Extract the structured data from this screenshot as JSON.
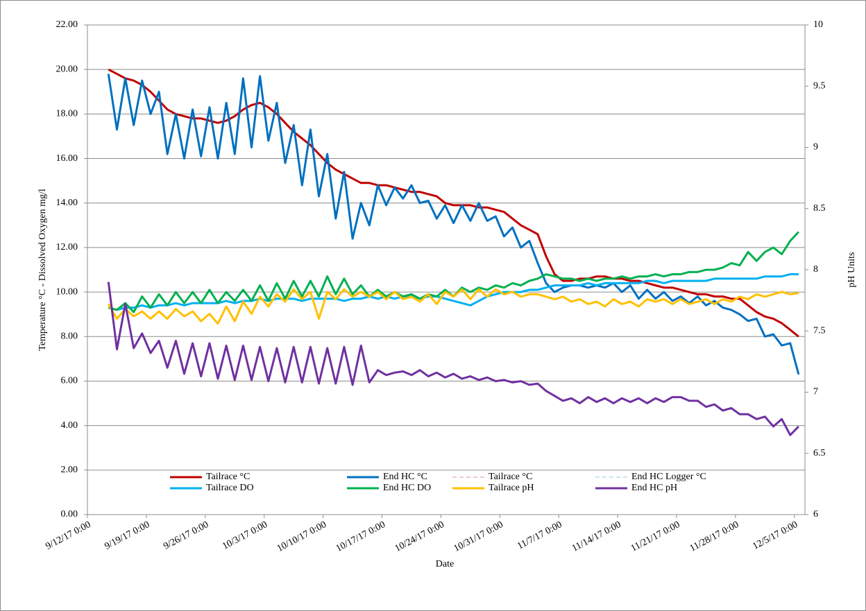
{
  "chart_data": {
    "type": "line",
    "x_label": "Date",
    "y_label": "Temperature °C - Dissolved Oxygen mg/l",
    "y2_label": "pH Units",
    "xlim": [
      "9/12/17 0:00",
      "12/6/17 6:00"
    ],
    "xticks": [
      "9/12/17 0:00",
      "9/19/17 0:00",
      "9/26/17 0:00",
      "10/3/17 0:00",
      "10/10/17 0:00",
      "10/17/17 0:00",
      "10/24/17 0:00",
      "10/31/17 0:00",
      "11/7/17 0:00",
      "11/14/17 0:00",
      "11/21/17 0:00",
      "11/28/17 0:00",
      "12/5/17 0:00"
    ],
    "ylim": [
      0,
      22
    ],
    "yticks": [
      {
        "value": 0,
        "label": "0.00"
      },
      {
        "value": 2,
        "label": "2.00"
      },
      {
        "value": 4,
        "label": "4.00"
      },
      {
        "value": 6,
        "label": "6.00"
      },
      {
        "value": 8,
        "label": "8.00"
      },
      {
        "value": 10,
        "label": "10.00"
      },
      {
        "value": 12,
        "label": "12.00"
      },
      {
        "value": 14,
        "label": "14.00"
      },
      {
        "value": 16,
        "label": "16.00"
      },
      {
        "value": 18,
        "label": "18.00"
      },
      {
        "value": 20,
        "label": "20.00"
      },
      {
        "value": 22,
        "label": "22.00"
      }
    ],
    "y2lim": [
      6,
      10
    ],
    "y2ticks": [
      6,
      6.5,
      7,
      7.5,
      8,
      8.5,
      9,
      9.5,
      10
    ],
    "grid": true,
    "legend": "lower center",
    "x": [
      "9/14/17 12:00",
      "9/15/17 12:00",
      "9/16/17 12:00",
      "9/17/17 12:00",
      "9/18/17 12:00",
      "9/19/17 12:00",
      "9/20/17 12:00",
      "9/21/17 12:00",
      "9/22/17 12:00",
      "9/23/17 12:00",
      "9/24/17 12:00",
      "9/25/17 12:00",
      "9/26/17 12:00",
      "9/27/17 12:00",
      "9/28/17 12:00",
      "9/29/17 12:00",
      "9/30/17 12:00",
      "10/1/17 12:00",
      "10/2/17 12:00",
      "10/3/17 12:00",
      "10/4/17 12:00",
      "10/5/17 12:00",
      "10/6/17 12:00",
      "10/7/17 12:00",
      "10/8/17 12:00",
      "10/9/17 12:00",
      "10/10/17 12:00",
      "10/11/17 12:00",
      "10/12/17 12:00",
      "10/13/17 12:00",
      "10/14/17 12:00",
      "10/15/17 12:00",
      "10/16/17 12:00",
      "10/17/17 12:00",
      "10/18/17 12:00",
      "10/19/17 12:00",
      "10/20/17 12:00",
      "10/21/17 12:00",
      "10/22/17 12:00",
      "10/23/17 12:00",
      "10/24/17 12:00",
      "10/25/17 12:00",
      "10/26/17 12:00",
      "10/27/17 12:00",
      "10/28/17 12:00",
      "10/29/17 12:00",
      "10/30/17 12:00",
      "10/31/17 12:00",
      "11/1/17 12:00",
      "11/2/17 12:00",
      "11/3/17 12:00",
      "11/4/17 12:00",
      "11/5/17 12:00",
      "11/6/17 12:00",
      "11/7/17 12:00",
      "11/8/17 12:00",
      "11/9/17 12:00",
      "11/10/17 12:00",
      "11/11/17 12:00",
      "11/12/17 12:00",
      "11/13/17 12:00",
      "11/14/17 12:00",
      "11/15/17 12:00",
      "11/16/17 12:00",
      "11/17/17 12:00",
      "11/18/17 12:00",
      "11/19/17 12:00",
      "11/20/17 12:00",
      "11/21/17 12:00",
      "11/22/17 12:00",
      "11/23/17 12:00",
      "11/24/17 12:00",
      "11/25/17 12:00",
      "11/26/17 12:00",
      "11/27/17 12:00",
      "11/28/17 12:00",
      "11/29/17 12:00",
      "11/30/17 12:00",
      "12/1/17 12:00",
      "12/2/17 12:00",
      "12/3/17 12:00",
      "12/4/17 12:00",
      "12/5/17 12:00"
    ],
    "series": [
      {
        "name": "Tailrace °C",
        "color": "#C00000",
        "values": [
          20.0,
          19.8,
          19.6,
          19.5,
          19.3,
          19.0,
          18.6,
          18.2,
          18.0,
          17.9,
          17.8,
          17.8,
          17.7,
          17.6,
          17.7,
          17.9,
          18.2,
          18.4,
          18.5,
          18.3,
          18.0,
          17.6,
          17.2,
          16.9,
          16.6,
          16.2,
          15.8,
          15.5,
          15.3,
          15.1,
          14.9,
          14.9,
          14.8,
          14.8,
          14.7,
          14.6,
          14.5,
          14.5,
          14.4,
          14.3,
          14.0,
          13.9,
          13.9,
          13.9,
          13.8,
          13.8,
          13.7,
          13.6,
          13.3,
          13.0,
          12.8,
          12.6,
          11.6,
          10.8,
          10.5,
          10.5,
          10.6,
          10.6,
          10.7,
          10.7,
          10.6,
          10.6,
          10.5,
          10.5,
          10.4,
          10.3,
          10.2,
          10.2,
          10.1,
          10.0,
          9.9,
          9.9,
          9.8,
          9.8,
          9.7,
          9.7,
          9.4,
          9.1,
          8.9,
          8.8,
          8.6,
          8.3,
          8.0
        ]
      },
      {
        "name": "End HC °C",
        "color": "#0070C0",
        "values": [
          19.8,
          17.3,
          19.6,
          17.5,
          19.5,
          18.0,
          19.0,
          16.2,
          18.0,
          16.0,
          18.2,
          16.1,
          18.3,
          16.0,
          18.5,
          16.2,
          19.6,
          16.5,
          19.7,
          16.8,
          18.5,
          15.8,
          17.5,
          14.8,
          17.3,
          14.3,
          16.2,
          13.3,
          15.4,
          12.4,
          14.0,
          13.0,
          14.8,
          13.9,
          14.7,
          14.2,
          14.8,
          14.0,
          14.1,
          13.3,
          13.9,
          13.1,
          13.9,
          13.2,
          14.0,
          13.2,
          13.4,
          12.5,
          12.9,
          12.0,
          12.3,
          11.3,
          10.4,
          10.0,
          10.2,
          10.3,
          10.3,
          10.2,
          10.3,
          10.2,
          10.4,
          10.0,
          10.3,
          9.7,
          10.1,
          9.7,
          10.0,
          9.6,
          9.8,
          9.5,
          9.8,
          9.4,
          9.6,
          9.3,
          9.2,
          9.0,
          8.7,
          8.8,
          8.0,
          8.1,
          7.6,
          7.7,
          6.3
        ]
      },
      {
        "name": "Tailrace °C",
        "color": "#E6B9B8",
        "dash": true,
        "values": [
          null,
          null,
          null,
          null,
          null,
          null,
          null,
          null,
          null,
          null,
          null,
          null,
          null,
          null,
          null,
          null,
          null,
          null,
          null,
          null,
          null,
          null,
          null,
          null,
          null,
          null,
          null,
          null,
          null,
          null,
          null,
          null,
          null,
          null,
          null,
          null,
          null,
          null,
          null,
          null,
          null,
          null,
          null,
          null,
          null,
          null,
          null,
          null,
          null,
          null,
          null,
          null,
          null,
          null,
          null,
          null,
          null,
          null,
          null,
          null,
          null,
          null,
          null,
          null,
          null,
          null,
          null,
          null,
          null,
          null,
          null,
          null,
          null,
          null,
          null,
          null,
          null,
          null,
          null,
          null,
          null,
          null,
          null
        ]
      },
      {
        "name": "End HC Logger °C",
        "color": "#B7DEE8",
        "dash": true,
        "values": [
          null,
          null,
          null,
          null,
          null,
          null,
          null,
          null,
          null,
          null,
          null,
          null,
          null,
          null,
          null,
          null,
          null,
          null,
          null,
          null,
          null,
          null,
          null,
          null,
          null,
          null,
          null,
          null,
          null,
          null,
          null,
          null,
          null,
          null,
          null,
          null,
          null,
          null,
          null,
          null,
          null,
          null,
          null,
          null,
          null,
          null,
          null,
          null,
          null,
          null,
          null,
          null,
          null,
          null,
          null,
          null,
          null,
          null,
          null,
          null,
          null,
          null,
          null,
          null,
          null,
          null,
          null,
          null,
          null,
          null,
          null,
          null,
          null,
          null,
          null,
          null,
          null,
          null,
          null,
          null,
          null,
          null,
          null
        ]
      },
      {
        "name": "Tailrace DO",
        "color": "#00B0F0",
        "values": [
          9.3,
          9.2,
          9.3,
          9.3,
          9.4,
          9.3,
          9.4,
          9.4,
          9.5,
          9.4,
          9.5,
          9.5,
          9.5,
          9.5,
          9.6,
          9.5,
          9.6,
          9.6,
          9.7,
          9.6,
          9.7,
          9.7,
          9.7,
          9.6,
          9.7,
          9.7,
          9.7,
          9.7,
          9.6,
          9.7,
          9.7,
          9.8,
          9.7,
          9.8,
          9.7,
          9.8,
          9.8,
          9.7,
          9.8,
          9.8,
          9.7,
          9.6,
          9.5,
          9.4,
          9.6,
          9.8,
          9.9,
          10.0,
          10.0,
          10.0,
          10.1,
          10.1,
          10.2,
          10.3,
          10.3,
          10.3,
          10.3,
          10.4,
          10.3,
          10.4,
          10.4,
          10.4,
          10.4,
          10.4,
          10.5,
          10.5,
          10.4,
          10.5,
          10.5,
          10.5,
          10.5,
          10.5,
          10.6,
          10.6,
          10.6,
          10.6,
          10.6,
          10.6,
          10.7,
          10.7,
          10.7,
          10.8,
          10.8
        ]
      },
      {
        "name": "End HC DO",
        "color": "#00B050",
        "values": [
          9.3,
          9.2,
          9.5,
          9.1,
          9.8,
          9.3,
          9.9,
          9.4,
          10.0,
          9.5,
          10.0,
          9.5,
          10.1,
          9.5,
          10.0,
          9.6,
          10.1,
          9.6,
          10.3,
          9.6,
          10.4,
          9.7,
          10.5,
          9.8,
          10.5,
          9.8,
          10.7,
          9.9,
          10.6,
          9.9,
          10.3,
          9.8,
          10.1,
          9.8,
          10.0,
          9.8,
          9.9,
          9.7,
          9.9,
          9.8,
          10.1,
          9.8,
          10.2,
          10.0,
          10.2,
          10.1,
          10.3,
          10.2,
          10.4,
          10.3,
          10.5,
          10.6,
          10.8,
          10.7,
          10.6,
          10.6,
          10.5,
          10.6,
          10.5,
          10.6,
          10.6,
          10.7,
          10.6,
          10.7,
          10.7,
          10.8,
          10.7,
          10.8,
          10.8,
          10.9,
          10.9,
          11.0,
          11.0,
          11.1,
          11.3,
          11.2,
          11.8,
          11.4,
          11.8,
          12.0,
          11.7,
          12.3,
          12.7
        ]
      },
      {
        "name": "Tailrace pH",
        "color": "#FFC000",
        "axis": "y2",
        "values": [
          7.72,
          7.6,
          7.68,
          7.62,
          7.66,
          7.6,
          7.66,
          7.6,
          7.68,
          7.62,
          7.66,
          7.58,
          7.64,
          7.56,
          7.7,
          7.58,
          7.74,
          7.64,
          7.78,
          7.7,
          7.8,
          7.74,
          7.84,
          7.76,
          7.82,
          7.6,
          7.82,
          7.76,
          7.84,
          7.78,
          7.82,
          7.78,
          7.82,
          7.76,
          7.82,
          7.76,
          7.78,
          7.74,
          7.8,
          7.72,
          7.82,
          7.78,
          7.84,
          7.76,
          7.84,
          7.78,
          7.84,
          7.8,
          7.82,
          7.78,
          7.8,
          7.8,
          7.78,
          7.76,
          7.78,
          7.74,
          7.76,
          7.72,
          7.74,
          7.7,
          7.76,
          7.72,
          7.74,
          7.7,
          7.76,
          7.74,
          7.76,
          7.72,
          7.76,
          7.72,
          7.74,
          7.76,
          7.72,
          7.76,
          7.74,
          7.78,
          7.76,
          7.8,
          7.78,
          7.8,
          7.82,
          7.8,
          7.81
        ]
      },
      {
        "name": "End HC pH",
        "color": "#7030A0",
        "axis": "y2",
        "values": [
          7.9,
          7.35,
          7.72,
          7.36,
          7.48,
          7.32,
          7.42,
          7.2,
          7.42,
          7.15,
          7.4,
          7.13,
          7.4,
          7.11,
          7.38,
          7.1,
          7.38,
          7.1,
          7.37,
          7.09,
          7.36,
          7.08,
          7.37,
          7.08,
          7.37,
          7.07,
          7.36,
          7.07,
          7.37,
          7.06,
          7.38,
          7.08,
          7.18,
          7.14,
          7.16,
          7.17,
          7.14,
          7.18,
          7.13,
          7.16,
          7.12,
          7.15,
          7.11,
          7.13,
          7.1,
          7.12,
          7.09,
          7.1,
          7.08,
          7.09,
          7.06,
          7.07,
          7.01,
          6.97,
          6.93,
          6.95,
          6.91,
          6.96,
          6.92,
          6.95,
          6.91,
          6.95,
          6.92,
          6.95,
          6.91,
          6.95,
          6.92,
          6.96,
          6.96,
          6.93,
          6.93,
          6.88,
          6.9,
          6.85,
          6.87,
          6.82,
          6.82,
          6.78,
          6.8,
          6.72,
          6.78,
          6.65,
          6.72
        ]
      }
    ]
  }
}
